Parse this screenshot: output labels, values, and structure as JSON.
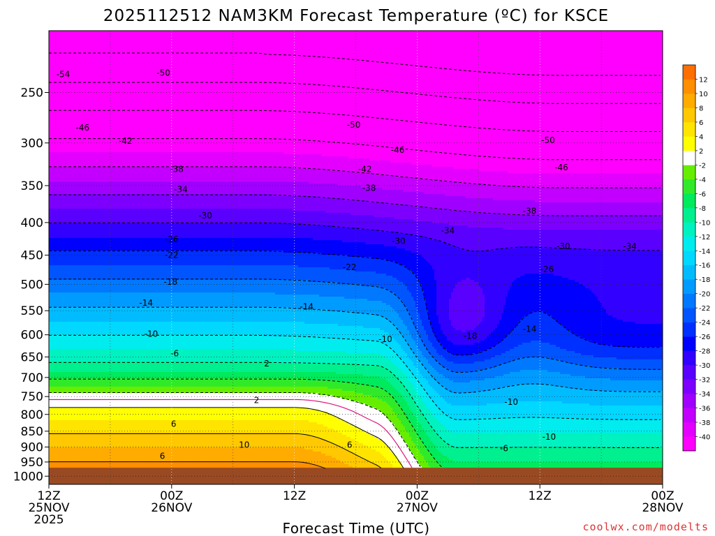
{
  "chart_data": {
    "type": "heatmap",
    "title": "2025112512 NAM3KM Forecast Temperature (ºC) for KSCE",
    "xlabel": "Forecast Time (UTC)",
    "ylabel": "",
    "x_ticks": [
      {
        "hour": 0,
        "label": "12Z",
        "line2": "25NOV",
        "line3": "2025"
      },
      {
        "hour": 12,
        "label": "00Z",
        "line2": "26NOV",
        "line3": ""
      },
      {
        "hour": 24,
        "label": "12Z",
        "line2": "",
        "line3": ""
      },
      {
        "hour": 36,
        "label": "00Z",
        "line2": "27NOV",
        "line3": ""
      },
      {
        "hour": 48,
        "label": "12Z",
        "line2": "",
        "line3": ""
      },
      {
        "hour": 60,
        "label": "00Z",
        "line2": "28NOV",
        "line3": ""
      }
    ],
    "xlim": [
      0,
      60
    ],
    "y_ticks": [
      250,
      300,
      350,
      400,
      450,
      500,
      550,
      600,
      650,
      700,
      750,
      800,
      850,
      900,
      950,
      1000
    ],
    "ylim_hPa": [
      200,
      1030
    ],
    "ground_pressure_hPa": 970,
    "ground_color": "#9a4a22",
    "colorbar": {
      "edges": [
        -42,
        -40,
        -38,
        -36,
        -34,
        -32,
        -30,
        -28,
        -26,
        -24,
        -22,
        -20,
        -18,
        -16,
        -14,
        -12,
        -10,
        -8,
        -6,
        -4,
        -2,
        2,
        4,
        6,
        8,
        10,
        12,
        14
      ],
      "labels": [
        "-40",
        "-38",
        "-36",
        "-34",
        "-32",
        "-30",
        "-28",
        "-26",
        "-24",
        "-22",
        "-20",
        "-18",
        "-16",
        "-14",
        "-12",
        "-10",
        "-8",
        "-6",
        "-4",
        "-2",
        "2",
        "4",
        "6",
        "8",
        "10",
        "12"
      ],
      "colors": [
        "#ff00ff",
        "#e400ff",
        "#c300ff",
        "#a000ff",
        "#7d00ff",
        "#5a00ff",
        "#3200ff",
        "#0000ff",
        "#0030ff",
        "#0055ff",
        "#0078ff",
        "#009bff",
        "#00bcff",
        "#00d8ff",
        "#00ecee",
        "#00f2c0",
        "#00f090",
        "#00ea5e",
        "#30ea2a",
        "#66ee00",
        "#ffffff",
        "#ffff00",
        "#ffe400",
        "#ffc800",
        "#ffab00",
        "#ff8e00",
        "#ff6e00"
      ]
    },
    "contour_labels": [
      {
        "text": "-54",
        "hour": 1.4,
        "p": 234
      },
      {
        "text": "-50",
        "hour": 11.2,
        "p": 233
      },
      {
        "text": "-46",
        "hour": 3.3,
        "p": 284
      },
      {
        "text": "-42",
        "hour": 7.5,
        "p": 298
      },
      {
        "text": "-50",
        "hour": 29.8,
        "p": 281
      },
      {
        "text": "-46",
        "hour": 34.1,
        "p": 308
      },
      {
        "text": "-50",
        "hour": 48.8,
        "p": 297
      },
      {
        "text": "-46",
        "hour": 50.1,
        "p": 328
      },
      {
        "text": "-38",
        "hour": 12.5,
        "p": 330
      },
      {
        "text": "-42",
        "hour": 30.9,
        "p": 330
      },
      {
        "text": "-34",
        "hour": 12.9,
        "p": 355
      },
      {
        "text": "-38",
        "hour": 31.3,
        "p": 353
      },
      {
        "text": "-30",
        "hour": 15.3,
        "p": 390
      },
      {
        "text": "-38",
        "hour": 47.0,
        "p": 384
      },
      {
        "text": "-26",
        "hour": 12.0,
        "p": 425
      },
      {
        "text": "-34",
        "hour": 39.0,
        "p": 412
      },
      {
        "text": "-30",
        "hour": 34.2,
        "p": 428
      },
      {
        "text": "-30",
        "hour": 50.3,
        "p": 436
      },
      {
        "text": "-34",
        "hour": 56.8,
        "p": 436
      },
      {
        "text": "-22",
        "hour": 12.0,
        "p": 450
      },
      {
        "text": "-22",
        "hour": 29.4,
        "p": 470
      },
      {
        "text": "-26",
        "hour": 48.7,
        "p": 474
      },
      {
        "text": "-18",
        "hour": 11.9,
        "p": 496
      },
      {
        "text": "-14",
        "hour": 9.5,
        "p": 535
      },
      {
        "text": "-14",
        "hour": 25.2,
        "p": 542
      },
      {
        "text": "-14",
        "hour": 47.0,
        "p": 588
      },
      {
        "text": "-10",
        "hour": 10.0,
        "p": 598
      },
      {
        "text": "-18",
        "hour": 41.2,
        "p": 603
      },
      {
        "text": "-10",
        "hour": 32.9,
        "p": 610
      },
      {
        "text": "-6",
        "hour": 12.3,
        "p": 642
      },
      {
        "text": "2",
        "hour": 21.3,
        "p": 666
      },
      {
        "text": "2",
        "hour": 20.3,
        "p": 760
      },
      {
        "text": "-10",
        "hour": 45.2,
        "p": 765
      },
      {
        "text": "6",
        "hour": 12.2,
        "p": 828
      },
      {
        "text": "-10",
        "hour": 48.9,
        "p": 868
      },
      {
        "text": "10",
        "hour": 19.1,
        "p": 893
      },
      {
        "text": "6",
        "hour": 29.4,
        "p": 893
      },
      {
        "text": "-6",
        "hour": 44.5,
        "p": 905
      },
      {
        "text": "6",
        "hour": 11.1,
        "p": 930
      }
    ],
    "legend": "right colorbar",
    "grid": true
  },
  "credit": "coolwx.com/modelts"
}
